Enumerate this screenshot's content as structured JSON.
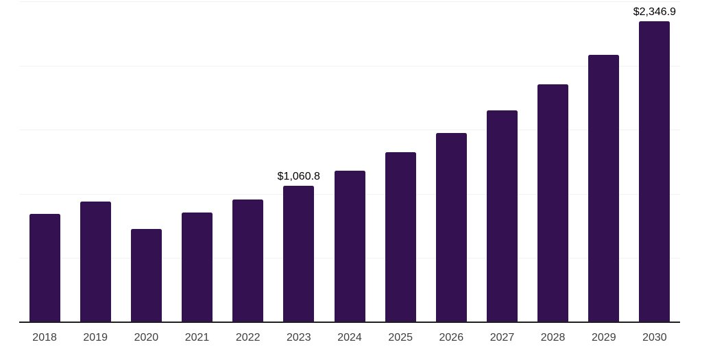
{
  "chart_data": {
    "type": "bar",
    "title": "",
    "xlabel": "",
    "ylabel": "",
    "categories": [
      "2018",
      "2019",
      "2020",
      "2021",
      "2022",
      "2023",
      "2024",
      "2025",
      "2026",
      "2027",
      "2028",
      "2029",
      "2030"
    ],
    "values": [
      846,
      939,
      725,
      853,
      956,
      1060.8,
      1179,
      1325,
      1477,
      1650,
      1852,
      2082,
      2346.9
    ],
    "data_labels": [
      "",
      "",
      "",
      "",
      "",
      "$1,060.8",
      "",
      "",
      "",
      "",
      "",
      "",
      "$2,346.9"
    ],
    "ylim": [
      0,
      2500
    ],
    "grid_step": 500,
    "grid_on": true,
    "legend_position": "none",
    "colors": {
      "bar": "#341150",
      "grid": "#f2f2f2",
      "axis_line": "#1f1f1f",
      "tick_label": "#3d3d3d",
      "data_label": "#000000",
      "background": "#ffffff"
    }
  }
}
